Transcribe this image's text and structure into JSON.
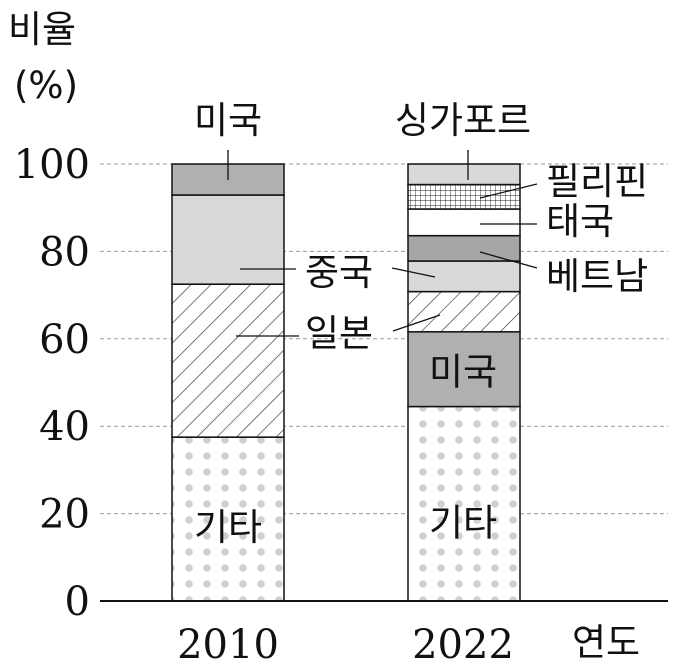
{
  "chart_data": {
    "type": "bar",
    "stacked": true,
    "ylabel_line1": "비율",
    "ylabel_line2": "(%)",
    "xlabel": "연도",
    "ylim": [
      0,
      100
    ],
    "yticks": [
      "0",
      "20",
      "40",
      "60",
      "80",
      "100"
    ],
    "grid": "dashed horizontal at 20, 40, 60, 80, 100",
    "categories": [
      "2010",
      "2022"
    ],
    "bars": [
      {
        "category": "2010",
        "segments": [
          {
            "name": "기타",
            "start": 0,
            "end": 37.5,
            "fill": "dots"
          },
          {
            "name": "일본",
            "start": 37.5,
            "end": 72.5,
            "fill": "hatch"
          },
          {
            "name": "중국",
            "start": 72.5,
            "end": 92.9,
            "fill": "#d9d9d9"
          },
          {
            "name": "미국",
            "start": 92.9,
            "end": 100,
            "fill": "#b0b0b0"
          }
        ]
      },
      {
        "category": "2022",
        "segments": [
          {
            "name": "기타",
            "start": 0,
            "end": 44.5,
            "fill": "dots"
          },
          {
            "name": "미국",
            "start": 44.5,
            "end": 61.6,
            "fill": "#b0b0b0"
          },
          {
            "name": "일본",
            "start": 61.6,
            "end": 70.8,
            "fill": "hatch"
          },
          {
            "name": "중국",
            "start": 70.8,
            "end": 77.8,
            "fill": "#d9d9d9"
          },
          {
            "name": "베트남",
            "start": 77.8,
            "end": 83.6,
            "fill": "#a6a6a6"
          },
          {
            "name": "태국",
            "start": 83.6,
            "end": 89.7,
            "fill": "#ffffff"
          },
          {
            "name": "필리핀",
            "start": 89.7,
            "end": 95.3,
            "fill": "crosshatch"
          },
          {
            "name": "싱가포르",
            "start": 95.3,
            "end": 100,
            "fill": "#d9d9d9"
          }
        ]
      }
    ],
    "inside_labels": [
      {
        "text": "기타",
        "bar": 0,
        "value": 19
      },
      {
        "text": "기타",
        "bar": 1,
        "value": 20
      },
      {
        "text": "미국",
        "bar": 1,
        "value": 52.5
      }
    ],
    "callouts": [
      {
        "text": "미국",
        "bar": 0,
        "value": 96.5
      },
      {
        "text": "중국",
        "bar": 0,
        "value": 76.5
      },
      {
        "text": "일본",
        "bar": 0,
        "value": 60.5
      },
      {
        "text": "중국",
        "bar": 1,
        "value": 75.5
      },
      {
        "text": "일본",
        "bar": 1,
        "value": 66.5
      },
      {
        "text": "싱가포르",
        "bar": 1,
        "value": 97.5
      },
      {
        "text": "필리핀",
        "bar": 1,
        "value": 93
      },
      {
        "text": "태국",
        "bar": 1,
        "value": 86.5
      },
      {
        "text": "베트남",
        "bar": 1,
        "value": 80.5
      }
    ]
  }
}
